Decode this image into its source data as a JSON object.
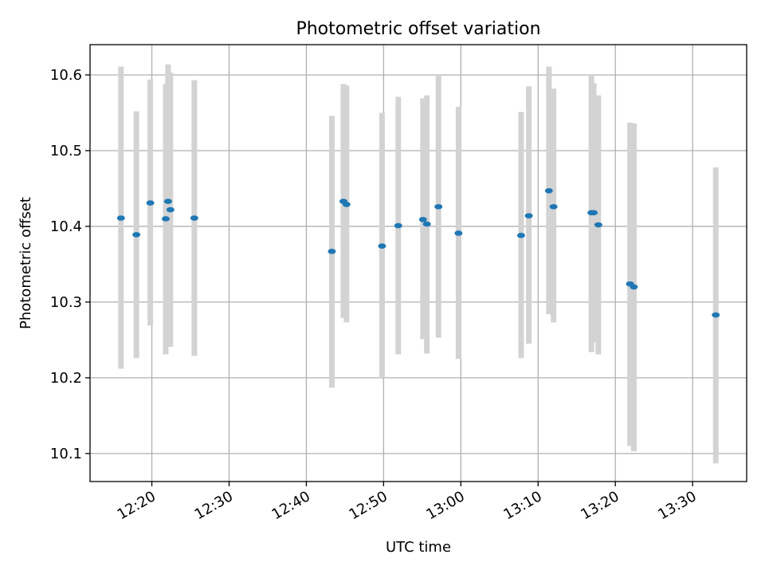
{
  "chart_data": {
    "type": "scatter",
    "title": "Photometric offset variation",
    "xlabel": "UTC time",
    "ylabel": "Photometric offset",
    "xlim": [
      "12:12",
      "13:37"
    ],
    "ylim": [
      10.063,
      10.64
    ],
    "x_ticks": [
      "12:20",
      "12:30",
      "12:40",
      "12:50",
      "13:00",
      "13:10",
      "13:20",
      "13:30"
    ],
    "y_ticks": [
      10.1,
      10.2,
      10.3,
      10.4,
      10.5,
      10.6
    ],
    "grid": true,
    "colors": {
      "point": "#1f77b4",
      "errorbar": "#d3d3d3"
    },
    "series": [
      {
        "points": [
          {
            "x": "12:16:00",
            "y": 10.411,
            "err_low": 10.212,
            "err_high": 10.611
          },
          {
            "x": "12:18:00",
            "y": 10.389,
            "err_low": 10.226,
            "err_high": 10.552
          },
          {
            "x": "12:19:48",
            "y": 10.431,
            "err_low": 10.269,
            "err_high": 10.594
          },
          {
            "x": "12:21:48",
            "y": 10.41,
            "err_low": 10.231,
            "err_high": 10.588
          },
          {
            "x": "12:22:06",
            "y": 10.433,
            "err_low": 10.25,
            "err_high": 10.614
          },
          {
            "x": "12:22:24",
            "y": 10.422,
            "err_low": 10.241,
            "err_high": 10.603
          },
          {
            "x": "12:25:30",
            "y": 10.411,
            "err_low": 10.229,
            "err_high": 10.593
          },
          {
            "x": "12:43:18",
            "y": 10.367,
            "err_low": 10.187,
            "err_high": 10.546
          },
          {
            "x": "12:44:48",
            "y": 10.433,
            "err_low": 10.279,
            "err_high": 10.588
          },
          {
            "x": "12:45:12",
            "y": 10.429,
            "err_low": 10.273,
            "err_high": 10.586
          },
          {
            "x": "12:49:48",
            "y": 10.374,
            "err_low": 10.2,
            "err_high": 10.55
          },
          {
            "x": "12:51:54",
            "y": 10.401,
            "err_low": 10.231,
            "err_high": 10.571
          },
          {
            "x": "12:55:06",
            "y": 10.409,
            "err_low": 10.251,
            "err_high": 10.569
          },
          {
            "x": "12:55:36",
            "y": 10.403,
            "err_low": 10.232,
            "err_high": 10.573
          },
          {
            "x": "12:57:06",
            "y": 10.426,
            "err_low": 10.253,
            "err_high": 10.6
          },
          {
            "x": "12:59:42",
            "y": 10.391,
            "err_low": 10.225,
            "err_high": 10.558
          },
          {
            "x": "13:07:48",
            "y": 10.388,
            "err_low": 10.226,
            "err_high": 10.551
          },
          {
            "x": "13:08:48",
            "y": 10.414,
            "err_low": 10.245,
            "err_high": 10.585
          },
          {
            "x": "13:11:24",
            "y": 10.447,
            "err_low": 10.284,
            "err_high": 10.611
          },
          {
            "x": "13:12:00",
            "y": 10.426,
            "err_low": 10.273,
            "err_high": 10.582
          },
          {
            "x": "13:16:54",
            "y": 10.418,
            "err_low": 10.234,
            "err_high": 10.601
          },
          {
            "x": "13:17:12",
            "y": 10.418,
            "err_low": 10.247,
            "err_high": 10.589
          },
          {
            "x": "13:17:48",
            "y": 10.402,
            "err_low": 10.231,
            "err_high": 10.573
          },
          {
            "x": "13:21:54",
            "y": 10.324,
            "err_low": 10.11,
            "err_high": 10.537
          },
          {
            "x": "13:22:24",
            "y": 10.32,
            "err_low": 10.103,
            "err_high": 10.536
          },
          {
            "x": "13:33:00",
            "y": 10.283,
            "err_low": 10.087,
            "err_high": 10.478
          }
        ]
      }
    ]
  }
}
